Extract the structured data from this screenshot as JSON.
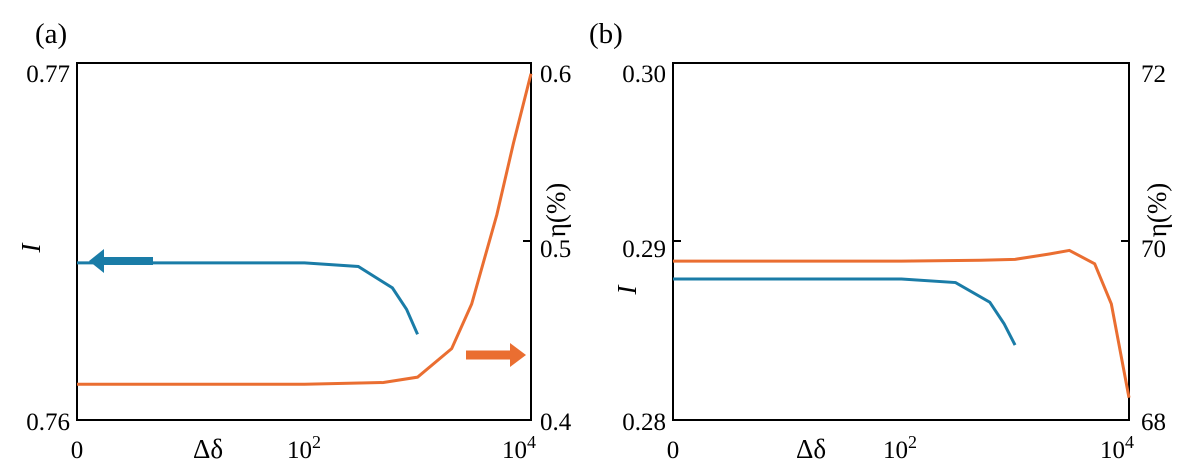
{
  "chart_data": [
    {
      "type": "line",
      "panel_label": "(a)",
      "xlabel_symbol": "Δδ",
      "ylabel_left": "I",
      "ylabel_right": "η(%)",
      "x_tick_labels": {
        "min": "0",
        "mid_base": "10",
        "mid_exp": "2",
        "max_base": "10",
        "max_exp": "4"
      },
      "xlim": [
        0,
        10000
      ],
      "x_scale": "log-like (0, 10^2, 10^4)",
      "ylim_left": [
        0.76,
        0.77
      ],
      "ylim_right": [
        0.4,
        0.6
      ],
      "left_ticks": [
        "0.77",
        "0.76"
      ],
      "right_ticks": [
        "0.6",
        "0.5",
        "0.4"
      ],
      "series": [
        {
          "axis": "left",
          "color": "#1a7ca7",
          "x": [
            0,
            10,
            100,
            300,
            600,
            800,
            1000
          ],
          "y": [
            0.7644,
            0.7644,
            0.7644,
            0.7643,
            0.7637,
            0.7631,
            0.7624
          ]
        },
        {
          "axis": "right",
          "color": "#ea6e31",
          "x": [
            0,
            10,
            100,
            500,
            1000,
            2000,
            3000,
            5000,
            7000,
            10000
          ],
          "y": [
            0.42,
            0.42,
            0.42,
            0.421,
            0.424,
            0.44,
            0.465,
            0.515,
            0.555,
            0.594
          ]
        }
      ],
      "annotations": [
        {
          "type": "arrow",
          "direction": "left",
          "color": "#1a7ca7",
          "meaning": "left axis"
        },
        {
          "type": "arrow",
          "direction": "right",
          "color": "#ea6e31",
          "meaning": "right axis"
        }
      ],
      "grid": false
    },
    {
      "type": "line",
      "panel_label": "(b)",
      "xlabel_symbol": "Δδ",
      "ylabel_left": "I",
      "ylabel_right": "η(%)",
      "x_tick_labels": {
        "min": "0",
        "mid_base": "10",
        "mid_exp": "2",
        "max_base": "10",
        "max_exp": "4"
      },
      "xlim": [
        0,
        10000
      ],
      "x_scale": "log-like (0, 10^2, 10^4)",
      "ylim_left": [
        0.28,
        0.3
      ],
      "ylim_right": [
        68,
        72
      ],
      "left_ticks": [
        "0.30",
        "0.29",
        "0.28"
      ],
      "right_ticks": [
        "72",
        "70",
        "68"
      ],
      "series": [
        {
          "axis": "left",
          "color": "#1a7ca7",
          "x": [
            0,
            10,
            100,
            300,
            600,
            800,
            1000
          ],
          "y": [
            0.2879,
            0.2879,
            0.2879,
            0.2877,
            0.2866,
            0.2854,
            0.2842
          ]
        },
        {
          "axis": "right",
          "color": "#ea6e31",
          "x": [
            0,
            10,
            100,
            500,
            1000,
            2000,
            3000,
            5000,
            7000,
            10000
          ],
          "y": [
            69.78,
            69.78,
            69.78,
            69.79,
            69.8,
            69.86,
            69.9,
            69.75,
            69.3,
            68.25
          ]
        }
      ],
      "grid": false
    }
  ]
}
